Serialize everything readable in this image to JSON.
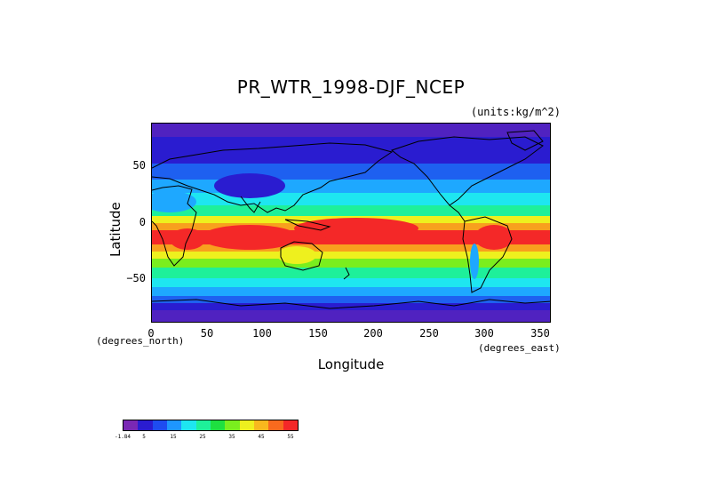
{
  "title": "PR_WTR_1998-DJF_NCEP",
  "units_label": "(units:kg/m^2)",
  "y_axis": {
    "label": "Latitude",
    "unit_label": "(degrees_north)",
    "ticks": [
      "50",
      "0",
      "−50"
    ]
  },
  "x_axis": {
    "label": "Longitude",
    "unit_label": "(degrees_east)",
    "ticks": [
      "0",
      "50",
      "100",
      "150",
      "200",
      "250",
      "300",
      "350"
    ]
  },
  "colorbar": {
    "colors": [
      "#7a28b4",
      "#2a1cd0",
      "#1e4cf0",
      "#1e96ff",
      "#1ee6f0",
      "#1ef09a",
      "#1ee040",
      "#7aee1e",
      "#eef01e",
      "#f8b81e",
      "#f86a1e",
      "#f42828"
    ],
    "tick_labels": [
      "-1.84",
      "5",
      "15",
      "25",
      "35",
      "45",
      "55"
    ]
  },
  "map_colors": {
    "polar": "#5022c0",
    "cold": "#2a1cd0",
    "cool": "#1e60f0",
    "mild": "#1ea8ff",
    "temperate": "#1ee6f0",
    "warm": "#1ef09a",
    "warmer": "#7aee1e",
    "humid": "#eef01e",
    "very_humid": "#f8a01e",
    "tropical": "#f42828"
  }
}
